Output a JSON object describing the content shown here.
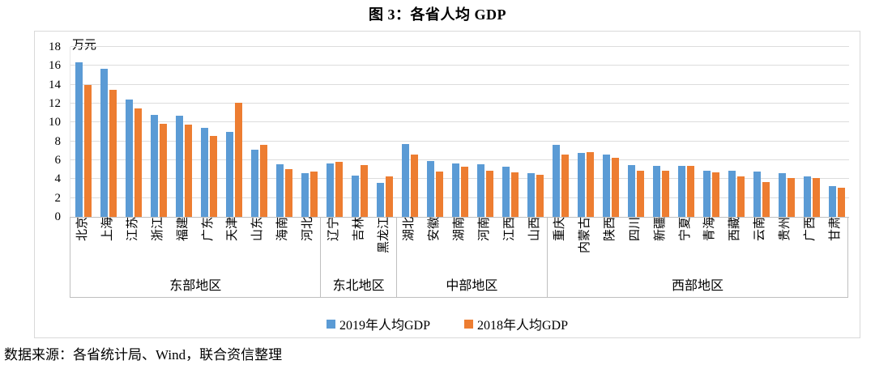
{
  "title": "图 3：各省人均 GDP",
  "source": "数据来源：各省统计局、Wind，联合资信整理",
  "chart_data": {
    "type": "bar",
    "title": "图 3：各省人均 GDP",
    "xlabel": "",
    "ylabel": "万元",
    "ylim": [
      0,
      18
    ],
    "ytick_step": 2,
    "grid": true,
    "legend_position": "bottom",
    "categories": [
      "北京",
      "上海",
      "江苏",
      "浙江",
      "福建",
      "广东",
      "天津",
      "山东",
      "海南",
      "河北",
      "辽宁",
      "吉林",
      "黑龙江",
      "湖北",
      "安徽",
      "湖南",
      "河南",
      "江西",
      "山西",
      "重庆",
      "内蒙古",
      "陕西",
      "四川",
      "新疆",
      "宁夏",
      "青海",
      "西藏",
      "云南",
      "贵州",
      "广西",
      "甘肃"
    ],
    "regions": [
      {
        "label": "东部地区",
        "count": 10
      },
      {
        "label": "东北地区",
        "count": 3
      },
      {
        "label": "中部地区",
        "count": 6
      },
      {
        "label": "西部地区",
        "count": 12
      }
    ],
    "series": [
      {
        "name": "2019年人均GDP",
        "color": "#5B9BD5",
        "values": [
          16.4,
          15.7,
          12.4,
          10.8,
          10.7,
          9.4,
          9.0,
          7.1,
          5.6,
          4.6,
          5.7,
          4.4,
          3.6,
          7.7,
          5.9,
          5.7,
          5.6,
          5.3,
          4.6,
          7.6,
          6.8,
          6.6,
          5.5,
          5.4,
          5.4,
          4.9,
          4.9,
          4.8,
          4.6,
          4.3,
          3.3
        ]
      },
      {
        "name": "2018年人均GDP",
        "color": "#ED7D31",
        "values": [
          14.0,
          13.5,
          11.5,
          9.9,
          9.8,
          8.6,
          12.1,
          7.6,
          5.1,
          4.8,
          5.8,
          5.5,
          4.3,
          6.6,
          4.8,
          5.3,
          4.9,
          4.7,
          4.5,
          6.6,
          6.9,
          6.3,
          4.9,
          4.9,
          5.4,
          4.7,
          4.3,
          3.7,
          4.1,
          4.1,
          3.1
        ]
      }
    ]
  }
}
